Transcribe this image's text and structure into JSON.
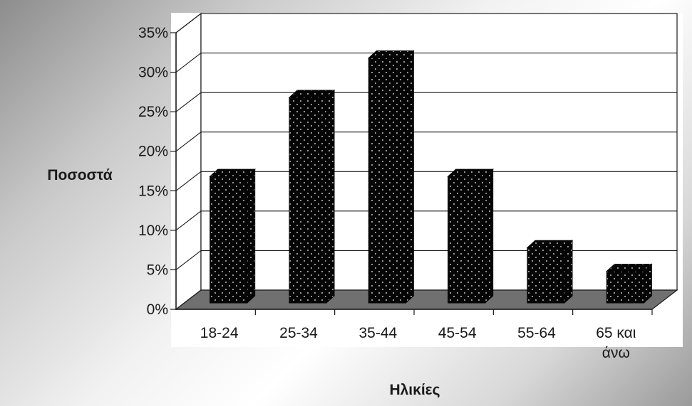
{
  "chart_data": {
    "type": "bar",
    "style": "3d-column",
    "categories": [
      [
        "18-24"
      ],
      [
        "25-34"
      ],
      [
        "35-44"
      ],
      [
        "45-54"
      ],
      [
        "55-64"
      ],
      [
        "65 και",
        "άνω"
      ]
    ],
    "values": [
      16,
      26,
      31,
      16,
      7,
      4
    ],
    "ylabel": "Ποσοστά",
    "xlabel": "Ηλικίες",
    "ylim": [
      0,
      35
    ],
    "yticks": [
      "0%",
      "5%",
      "10%",
      "15%",
      "20%",
      "25%",
      "30%",
      "35%"
    ],
    "ytick_values": [
      0,
      5,
      10,
      15,
      20,
      25,
      30,
      35
    ],
    "grid": true,
    "legend": "none",
    "colors": {
      "bar": "#050505",
      "bar_dots": "#bfbfbf",
      "floor": "#707070",
      "gridline": "#1a1a1a",
      "wall": "#ffffff"
    }
  }
}
